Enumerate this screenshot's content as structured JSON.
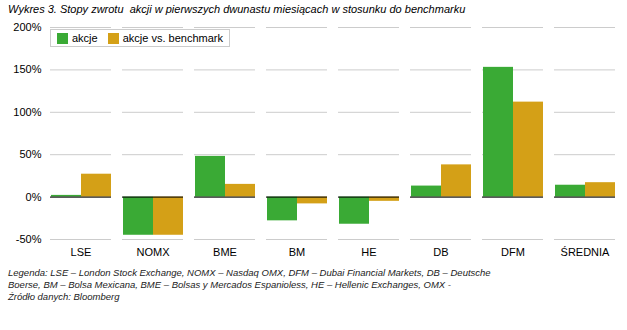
{
  "chart_data": {
    "type": "bar",
    "title": "Wykres 3. Stopy zwrotu  akcji w pierwszych dwunastu miesiącach w stosunku do benchmarku",
    "caption": "Legenda: LSE – London Stock Exchange, NOMX – Nasdaq OMX, DFM – Dubai Financial Markets, DB – Deutsche\nBoerse, BM – Bolsa Mexicana, BME – Bolsas y Mercados Espanioless, HE – Hellenic Exchanges, OMX -\nŹródło danych: Bloomberg",
    "categories": [
      "LSE",
      "NOMX",
      "BME",
      "BM",
      "HE",
      "DB",
      "DFM",
      "ŚREDNIA"
    ],
    "series": [
      {
        "name": "akcje",
        "color": "#3aaa35",
        "values": [
          2,
          -45,
          48,
          -28,
          -32,
          13,
          153,
          14
        ]
      },
      {
        "name": "akcje vs. benchmark",
        "color": "#d4a017",
        "values": [
          27,
          -45,
          15,
          -8,
          -5,
          38,
          112,
          17
        ]
      }
    ],
    "ylim": [
      -50,
      200
    ],
    "yticks": [
      {
        "value": -50,
        "label": "-50%"
      },
      {
        "value": 0,
        "label": "0%"
      },
      {
        "value": 50,
        "label": "50%"
      },
      {
        "value": 100,
        "label": "100%"
      },
      {
        "value": 150,
        "label": "150%"
      },
      {
        "value": 200,
        "label": "200%"
      }
    ],
    "grid": true,
    "legend": "upper left"
  }
}
